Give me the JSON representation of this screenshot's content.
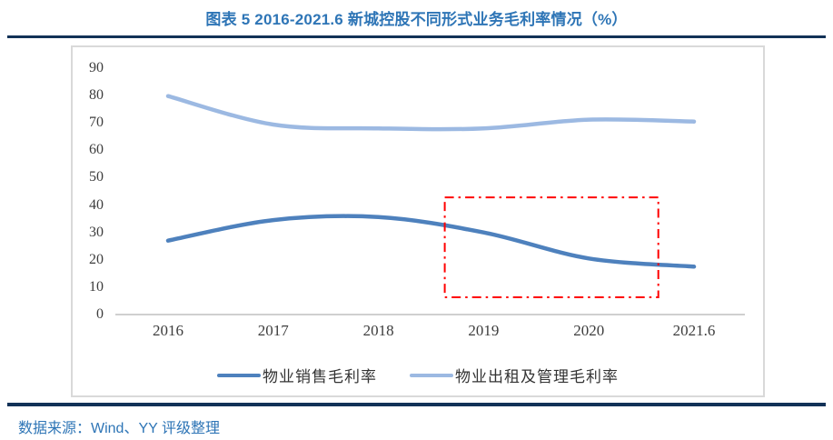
{
  "title": "图表 5 2016-2021.6 新城控股不同形式业务毛利率情况（%）",
  "source": "数据来源：Wind、YY 评级整理",
  "colors": {
    "title_text": "#2E75B6",
    "divider_rule": "#123257",
    "source_text": "#2E75B6",
    "axis_line": "#BFBFBF",
    "tick_text": "#3d3d3d",
    "box_border": "#D9D9D9"
  },
  "chart_data": {
    "type": "line",
    "smooth": true,
    "grid": false,
    "legend_position": "bottom",
    "categories": [
      "2016",
      "2017",
      "2018",
      "2019",
      "2020",
      "2021.6"
    ],
    "series": [
      {
        "name": "物业销售毛利率",
        "color": "#4E81BD",
        "values": [
          27,
          34.5,
          35.6,
          30,
          20.5,
          17.5
        ]
      },
      {
        "name": "物业出租及管理毛利率",
        "color": "#9CB9E2",
        "values": [
          79.8,
          69.4,
          68,
          68,
          71.2,
          70.5
        ]
      }
    ],
    "ylim": [
      0,
      90
    ],
    "yticks": [
      0,
      10,
      20,
      30,
      40,
      50,
      60,
      70,
      80,
      90
    ],
    "annotation": {
      "type": "dash_dot_rectangle",
      "color": "#FF0000",
      "x_category_span": [
        2.63,
        4.66
      ],
      "y_span": [
        6.3,
        42.8
      ]
    }
  }
}
